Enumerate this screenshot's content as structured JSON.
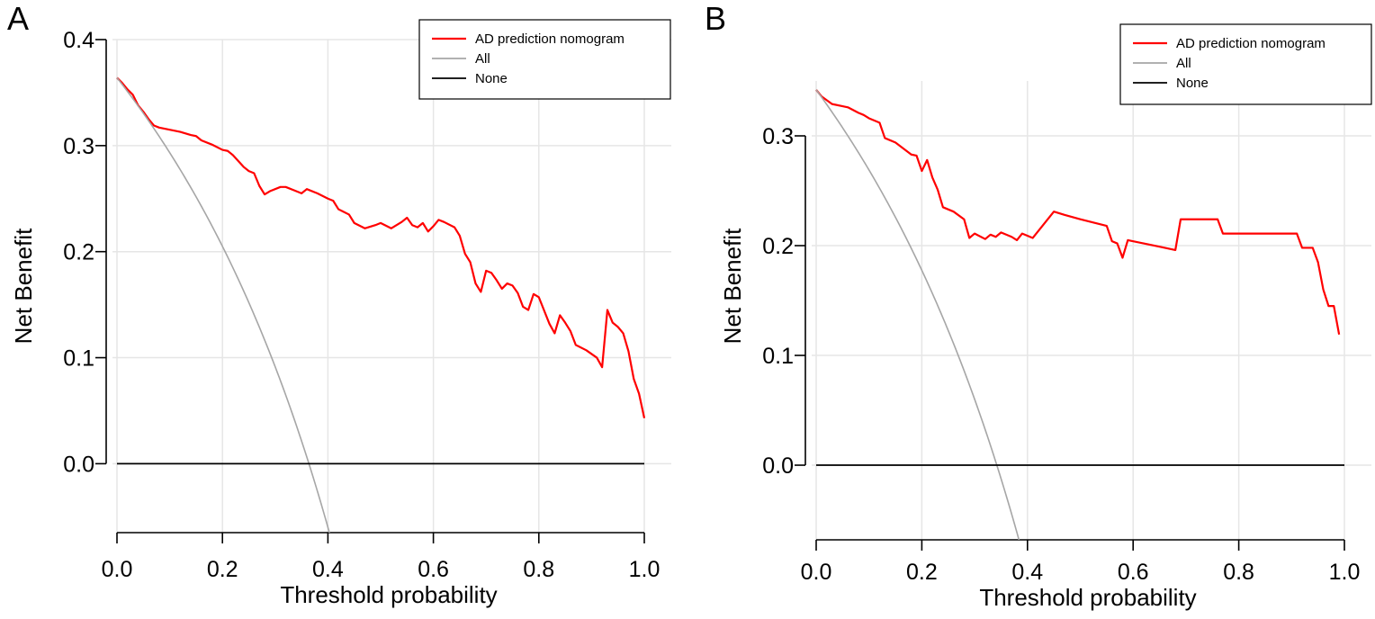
{
  "chart_data": [
    {
      "type": "line",
      "panel_label": "A",
      "xlabel": "Threshold probability",
      "ylabel": "Net Benefit",
      "xlim": [
        0,
        1
      ],
      "ylim": [
        -0.065,
        0.4
      ],
      "x_ticks": [
        "0.0",
        "0.2",
        "0.4",
        "0.6",
        "0.8",
        "1.0"
      ],
      "y_ticks": [
        "0.0",
        "0.1",
        "0.2",
        "0.3",
        "0.4"
      ],
      "grid": true,
      "legend_position": "top-right",
      "legend": [
        "AD prediction nomogram",
        "All",
        "None"
      ],
      "series": [
        {
          "name": "AD prediction nomogram",
          "color": "#ff0000",
          "points": [
            [
              0.0,
              0.364
            ],
            [
              0.01,
              0.359
            ],
            [
              0.02,
              0.353
            ],
            [
              0.03,
              0.348
            ],
            [
              0.04,
              0.338
            ],
            [
              0.05,
              0.332
            ],
            [
              0.06,
              0.325
            ],
            [
              0.07,
              0.319
            ],
            [
              0.08,
              0.317
            ],
            [
              0.1,
              0.315
            ],
            [
              0.12,
              0.313
            ],
            [
              0.14,
              0.31
            ],
            [
              0.15,
              0.309
            ],
            [
              0.16,
              0.305
            ],
            [
              0.18,
              0.301
            ],
            [
              0.2,
              0.296
            ],
            [
              0.21,
              0.295
            ],
            [
              0.22,
              0.291
            ],
            [
              0.24,
              0.28
            ],
            [
              0.25,
              0.276
            ],
            [
              0.26,
              0.274
            ],
            [
              0.27,
              0.262
            ],
            [
              0.28,
              0.254
            ],
            [
              0.29,
              0.257
            ],
            [
              0.31,
              0.261
            ],
            [
              0.32,
              0.261
            ],
            [
              0.34,
              0.257
            ],
            [
              0.35,
              0.255
            ],
            [
              0.36,
              0.259
            ],
            [
              0.38,
              0.255
            ],
            [
              0.4,
              0.25
            ],
            [
              0.41,
              0.248
            ],
            [
              0.42,
              0.24
            ],
            [
              0.44,
              0.235
            ],
            [
              0.45,
              0.227
            ],
            [
              0.47,
              0.222
            ],
            [
              0.49,
              0.225
            ],
            [
              0.5,
              0.227
            ],
            [
              0.52,
              0.222
            ],
            [
              0.54,
              0.228
            ],
            [
              0.55,
              0.232
            ],
            [
              0.56,
              0.225
            ],
            [
              0.57,
              0.223
            ],
            [
              0.58,
              0.227
            ],
            [
              0.59,
              0.219
            ],
            [
              0.6,
              0.224
            ],
            [
              0.61,
              0.23
            ],
            [
              0.62,
              0.228
            ],
            [
              0.64,
              0.223
            ],
            [
              0.65,
              0.215
            ],
            [
              0.66,
              0.198
            ],
            [
              0.67,
              0.19
            ],
            [
              0.68,
              0.17
            ],
            [
              0.69,
              0.162
            ],
            [
              0.7,
              0.182
            ],
            [
              0.71,
              0.18
            ],
            [
              0.72,
              0.173
            ],
            [
              0.73,
              0.165
            ],
            [
              0.74,
              0.17
            ],
            [
              0.75,
              0.168
            ],
            [
              0.76,
              0.161
            ],
            [
              0.77,
              0.148
            ],
            [
              0.78,
              0.145
            ],
            [
              0.79,
              0.16
            ],
            [
              0.8,
              0.157
            ],
            [
              0.82,
              0.132
            ],
            [
              0.83,
              0.123
            ],
            [
              0.84,
              0.14
            ],
            [
              0.85,
              0.133
            ],
            [
              0.86,
              0.125
            ],
            [
              0.87,
              0.112
            ],
            [
              0.89,
              0.107
            ],
            [
              0.91,
              0.1
            ],
            [
              0.92,
              0.091
            ],
            [
              0.93,
              0.145
            ],
            [
              0.94,
              0.133
            ],
            [
              0.95,
              0.129
            ],
            [
              0.96,
              0.123
            ],
            [
              0.97,
              0.106
            ],
            [
              0.98,
              0.08
            ],
            [
              0.99,
              0.066
            ],
            [
              1.0,
              0.043
            ]
          ]
        },
        {
          "name": "All",
          "color": "#a6a6a6",
          "formula": "0.364 - (1 - 0.364) * p / (1 - p)",
          "prevalence": 0.364
        },
        {
          "name": "None",
          "color": "#000000",
          "points": [
            [
              0.0,
              0.0
            ],
            [
              1.0,
              0.0
            ]
          ]
        }
      ]
    },
    {
      "type": "line",
      "panel_label": "B",
      "xlabel": "Threshold probability",
      "ylabel": "Net Benefit",
      "xlim": [
        0,
        1
      ],
      "ylim": [
        -0.068,
        0.35
      ],
      "x_ticks": [
        "0.0",
        "0.2",
        "0.4",
        "0.6",
        "0.8",
        "1.0"
      ],
      "y_ticks": [
        "0.0",
        "0.1",
        "0.2",
        "0.3"
      ],
      "grid": true,
      "legend_position": "top-right",
      "legend": [
        "AD prediction nomogram",
        "All",
        "None"
      ],
      "series": [
        {
          "name": "AD prediction nomogram",
          "color": "#ff0000",
          "points": [
            [
              0.0,
              0.342
            ],
            [
              0.01,
              0.336
            ],
            [
              0.03,
              0.329
            ],
            [
              0.05,
              0.327
            ],
            [
              0.06,
              0.326
            ],
            [
              0.08,
              0.321
            ],
            [
              0.09,
              0.319
            ],
            [
              0.1,
              0.316
            ],
            [
              0.12,
              0.312
            ],
            [
              0.13,
              0.298
            ],
            [
              0.15,
              0.294
            ],
            [
              0.18,
              0.283
            ],
            [
              0.19,
              0.282
            ],
            [
              0.2,
              0.268
            ],
            [
              0.21,
              0.278
            ],
            [
              0.22,
              0.262
            ],
            [
              0.23,
              0.251
            ],
            [
              0.24,
              0.235
            ],
            [
              0.26,
              0.231
            ],
            [
              0.28,
              0.224
            ],
            [
              0.29,
              0.207
            ],
            [
              0.3,
              0.211
            ],
            [
              0.32,
              0.206
            ],
            [
              0.33,
              0.21
            ],
            [
              0.34,
              0.208
            ],
            [
              0.35,
              0.212
            ],
            [
              0.37,
              0.208
            ],
            [
              0.38,
              0.205
            ],
            [
              0.39,
              0.211
            ],
            [
              0.41,
              0.207
            ],
            [
              0.43,
              0.219
            ],
            [
              0.45,
              0.231
            ],
            [
              0.47,
              0.228
            ],
            [
              0.5,
              0.224
            ],
            [
              0.55,
              0.218
            ],
            [
              0.56,
              0.204
            ],
            [
              0.57,
              0.202
            ],
            [
              0.58,
              0.189
            ],
            [
              0.59,
              0.205
            ],
            [
              0.62,
              0.202
            ],
            [
              0.65,
              0.199
            ],
            [
              0.68,
              0.196
            ],
            [
              0.69,
              0.224
            ],
            [
              0.76,
              0.224
            ],
            [
              0.77,
              0.211
            ],
            [
              0.91,
              0.211
            ],
            [
              0.92,
              0.198
            ],
            [
              0.94,
              0.198
            ],
            [
              0.95,
              0.185
            ],
            [
              0.96,
              0.16
            ],
            [
              0.97,
              0.145
            ],
            [
              0.98,
              0.145
            ],
            [
              0.99,
              0.119
            ]
          ]
        },
        {
          "name": "All",
          "color": "#a6a6a6",
          "formula": "0.342 - (1 - 0.342) * p / (1 - p)",
          "prevalence": 0.342
        },
        {
          "name": "None",
          "color": "#000000",
          "points": [
            [
              0.0,
              0.0
            ],
            [
              1.0,
              0.0
            ]
          ]
        }
      ]
    }
  ]
}
